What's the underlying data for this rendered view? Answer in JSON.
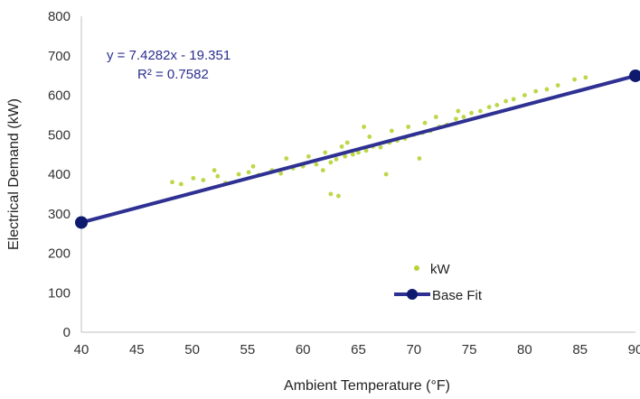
{
  "chart_data": {
    "type": "scatter",
    "title": "",
    "xlabel": "Ambient Temperature (°F)",
    "ylabel": "Electrical Demand (kW)",
    "xlim": [
      40,
      90
    ],
    "ylim": [
      0,
      800
    ],
    "x_ticks": [
      40,
      45,
      50,
      55,
      60,
      65,
      70,
      75,
      80,
      85,
      90
    ],
    "y_ticks": [
      0,
      100,
      200,
      300,
      400,
      500,
      600,
      700,
      800
    ],
    "grid": false,
    "legend_position": "bottom-center",
    "series": [
      {
        "name": "kW",
        "kind": "scatter",
        "color": "#b5d334",
        "x": [
          48.2,
          49.0,
          50.1,
          51.0,
          52.3,
          53.0,
          54.2,
          55.1,
          56.0,
          57.2,
          58.0,
          59.1,
          60.0,
          61.2,
          61.8,
          62.5,
          63.0,
          63.8,
          64.5,
          65.0,
          65.7,
          66.3,
          67.0,
          67.8,
          68.5,
          69.2,
          70.0,
          70.8,
          71.5,
          72.3,
          73.0,
          73.8,
          74.5,
          75.2,
          76.0,
          76.8,
          77.5,
          78.3,
          79.0,
          80.0,
          81.0,
          82.0,
          83.0,
          84.5,
          85.5,
          52.0,
          55.5,
          58.5,
          60.5,
          62.0,
          63.5,
          64.0,
          66.0,
          68.0,
          69.5,
          71.0,
          72.0,
          74.0,
          62.5,
          63.2,
          67.5,
          70.5,
          65.5
        ],
        "y": [
          380,
          375,
          390,
          385,
          395,
          378,
          400,
          405,
          398,
          410,
          402,
          415,
          420,
          425,
          410,
          430,
          438,
          445,
          450,
          455,
          460,
          470,
          468,
          480,
          485,
          490,
          500,
          505,
          510,
          520,
          525,
          540,
          545,
          555,
          560,
          570,
          575,
          585,
          590,
          600,
          610,
          615,
          625,
          640,
          645,
          410,
          420,
          440,
          445,
          455,
          470,
          480,
          495,
          510,
          520,
          530,
          545,
          560,
          350,
          345,
          400,
          440,
          520
        ]
      },
      {
        "name": "Base Fit",
        "kind": "line",
        "color": "#2e3192",
        "x": [
          40,
          90
        ],
        "y": [
          277.8,
          649.2
        ]
      }
    ],
    "annotations": {
      "equation": "y = 7.4282x - 19.351",
      "r_squared": "R² = 0.7582"
    },
    "legend": [
      {
        "label": "kW",
        "marker": "dot",
        "color": "#b5d334"
      },
      {
        "label": "Base Fit",
        "marker": "line-dot",
        "color": "#2e3192"
      }
    ]
  }
}
